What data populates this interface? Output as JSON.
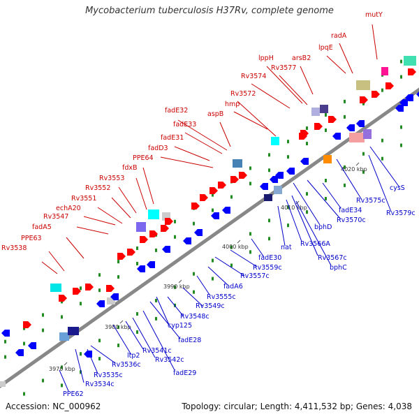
{
  "title": "Mycobacterium tuberculosis H37Rv, complete genome",
  "footer": {
    "accession": "Accession: NC_000962",
    "summary": "Topology: circular; Length: 4,411,532 bp; Genes: 4,038"
  },
  "colors": {
    "backbone": "#808080",
    "label_forward": "#cc0000",
    "label_reverse": "#0000cc",
    "tick": "#228b22"
  },
  "ticks": [
    {
      "label": "3970 kbp",
      "kbp": 3970
    },
    {
      "label": "3980 kbp",
      "kbp": 3980
    },
    {
      "label": "3990 kbp",
      "kbp": 3990
    },
    {
      "label": "4000 kbp",
      "kbp": 4000
    },
    {
      "label": "4010 kbp",
      "kbp": 4010
    },
    {
      "label": "4020 kbp",
      "kbp": 4020
    }
  ],
  "forward_genes": [
    {
      "name": "Rv3538"
    },
    {
      "name": "PPE63"
    },
    {
      "name": "fadA5"
    },
    {
      "name": "Rv3547"
    },
    {
      "name": "echA20"
    },
    {
      "name": "Rv3551"
    },
    {
      "name": "Rv3552"
    },
    {
      "name": "Rv3553"
    },
    {
      "name": "fdxB"
    },
    {
      "name": "PPE64"
    },
    {
      "name": "fadD3"
    },
    {
      "name": "fadE31"
    },
    {
      "name": "fadE33"
    },
    {
      "name": "fadE32"
    },
    {
      "name": "aspB"
    },
    {
      "name": "hmp"
    },
    {
      "name": "Rv3572"
    },
    {
      "name": "Rv3574"
    },
    {
      "name": "lppH"
    },
    {
      "name": "Rv3577"
    },
    {
      "name": "arsB2"
    },
    {
      "name": "lpqE"
    },
    {
      "name": "radA"
    },
    {
      "name": "mutY"
    }
  ],
  "reverse_genes": [
    {
      "name": "PPE62"
    },
    {
      "name": "Rv3534c"
    },
    {
      "name": "Rv3535c"
    },
    {
      "name": "Rv3536c"
    },
    {
      "name": "ltp2"
    },
    {
      "name": "Rv3541c"
    },
    {
      "name": "Rv3542c"
    },
    {
      "name": "fadE29"
    },
    {
      "name": "fadE28"
    },
    {
      "name": "cyp125"
    },
    {
      "name": "Rv3548c"
    },
    {
      "name": "Rv3549c"
    },
    {
      "name": "Rv3555c"
    },
    {
      "name": "fadA6"
    },
    {
      "name": "Rv3557c"
    },
    {
      "name": "Rv3559c"
    },
    {
      "name": "fadE30"
    },
    {
      "name": "nat"
    },
    {
      "name": "Rv3566A"
    },
    {
      "name": "Rv3567c"
    },
    {
      "name": "bphC"
    },
    {
      "name": "bphD"
    },
    {
      "name": "Rv3570c"
    },
    {
      "name": "fadE34"
    },
    {
      "name": "Rv3575c"
    },
    {
      "name": "Rv3579c"
    },
    {
      "name": "cysS"
    }
  ]
}
